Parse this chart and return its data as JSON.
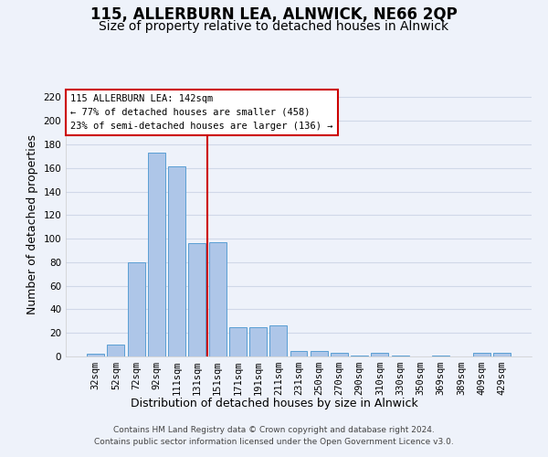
{
  "title": "115, ALLERBURN LEA, ALNWICK, NE66 2QP",
  "subtitle": "Size of property relative to detached houses in Alnwick",
  "xlabel": "Distribution of detached houses by size in Alnwick",
  "ylabel": "Number of detached properties",
  "footer_line1": "Contains HM Land Registry data © Crown copyright and database right 2024.",
  "footer_line2": "Contains public sector information licensed under the Open Government Licence v3.0.",
  "annotation_line1": "115 ALLERBURN LEA: 142sqm",
  "annotation_line2": "← 77% of detached houses are smaller (458)",
  "annotation_line3": "23% of semi-detached houses are larger (136) →",
  "vline_x": 5.5,
  "categories": [
    "32sqm",
    "52sqm",
    "72sqm",
    "92sqm",
    "111sqm",
    "131sqm",
    "151sqm",
    "171sqm",
    "191sqm",
    "211sqm",
    "231sqm",
    "250sqm",
    "270sqm",
    "290sqm",
    "310sqm",
    "330sqm",
    "350sqm",
    "369sqm",
    "389sqm",
    "409sqm",
    "429sqm"
  ],
  "values": [
    2,
    10,
    80,
    173,
    161,
    96,
    97,
    25,
    25,
    26,
    5,
    5,
    3,
    1,
    3,
    1,
    0,
    1,
    0,
    3,
    3
  ],
  "bar_color": "#aec6e8",
  "bar_edge_color": "#5a9fd4",
  "vline_color": "#cc0000",
  "annotation_box_edge": "#cc0000",
  "annotation_box_face": "#ffffff",
  "grid_color": "#d0d8e8",
  "ylim": [
    0,
    225
  ],
  "yticks": [
    0,
    20,
    40,
    60,
    80,
    100,
    120,
    140,
    160,
    180,
    200,
    220
  ],
  "bg_color": "#eef2fa",
  "title_fontsize": 12,
  "subtitle_fontsize": 10,
  "tick_fontsize": 7.5,
  "label_fontsize": 9,
  "footer_fontsize": 6.5
}
